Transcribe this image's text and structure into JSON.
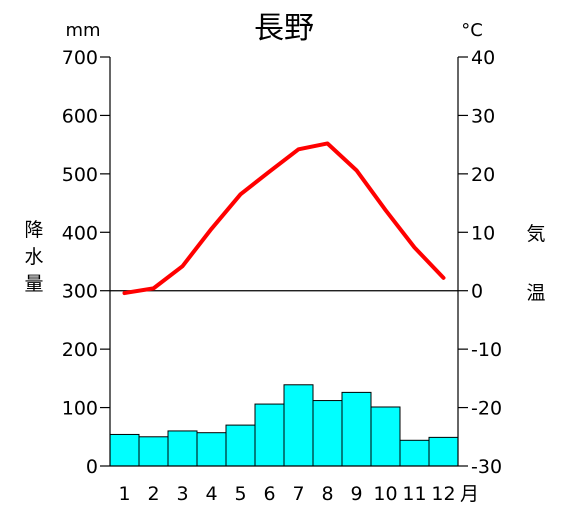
{
  "chart_data": {
    "type": "bar+line",
    "title": "長野",
    "categories": [
      "1",
      "2",
      "3",
      "4",
      "5",
      "6",
      "7",
      "8",
      "9",
      "10",
      "11",
      "12"
    ],
    "category_suffix": "月",
    "precipitation": {
      "values": [
        54,
        50,
        60,
        57,
        70,
        106,
        139,
        112,
        126,
        101,
        44,
        49
      ],
      "unit": "mm",
      "axis_label": [
        "降",
        "水",
        "量"
      ],
      "ylim": [
        0,
        700
      ],
      "ticks": [
        0,
        100,
        200,
        300,
        400,
        500,
        600,
        700
      ],
      "color": "#00ffff",
      "edge_color": "#000000"
    },
    "temperature": {
      "values": [
        -0.4,
        0.4,
        4.2,
        10.6,
        16.5,
        20.4,
        24.2,
        25.2,
        20.6,
        13.8,
        7.4,
        2.2
      ],
      "unit": "°C",
      "axis_label": [
        "気",
        "温"
      ],
      "ylim": [
        -30,
        40
      ],
      "ticks": [
        -30,
        -20,
        -10,
        0,
        10,
        20,
        30,
        40
      ],
      "color": "#ff0000"
    },
    "zero_line": true,
    "grid": false
  }
}
